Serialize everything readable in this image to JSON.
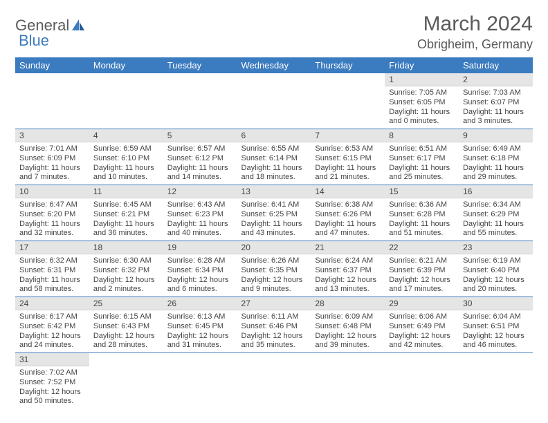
{
  "logo": {
    "part1": "General",
    "part2": "Blue"
  },
  "title": "March 2024",
  "location": "Obrigheim, Germany",
  "colors": {
    "header_bg": "#3b7bbf",
    "header_text": "#ffffff",
    "daynum_bg": "#e5e5e5",
    "row_border": "#3b7bbf",
    "page_bg": "#ffffff",
    "text": "#444444",
    "title_text": "#5a5a5a"
  },
  "weekdays": [
    "Sunday",
    "Monday",
    "Tuesday",
    "Wednesday",
    "Thursday",
    "Friday",
    "Saturday"
  ],
  "weeks": [
    [
      null,
      null,
      null,
      null,
      null,
      {
        "n": "1",
        "sr": "7:05 AM",
        "ss": "6:05 PM",
        "dl": "11 hours and 0 minutes."
      },
      {
        "n": "2",
        "sr": "7:03 AM",
        "ss": "6:07 PM",
        "dl": "11 hours and 3 minutes."
      }
    ],
    [
      {
        "n": "3",
        "sr": "7:01 AM",
        "ss": "6:09 PM",
        "dl": "11 hours and 7 minutes."
      },
      {
        "n": "4",
        "sr": "6:59 AM",
        "ss": "6:10 PM",
        "dl": "11 hours and 10 minutes."
      },
      {
        "n": "5",
        "sr": "6:57 AM",
        "ss": "6:12 PM",
        "dl": "11 hours and 14 minutes."
      },
      {
        "n": "6",
        "sr": "6:55 AM",
        "ss": "6:14 PM",
        "dl": "11 hours and 18 minutes."
      },
      {
        "n": "7",
        "sr": "6:53 AM",
        "ss": "6:15 PM",
        "dl": "11 hours and 21 minutes."
      },
      {
        "n": "8",
        "sr": "6:51 AM",
        "ss": "6:17 PM",
        "dl": "11 hours and 25 minutes."
      },
      {
        "n": "9",
        "sr": "6:49 AM",
        "ss": "6:18 PM",
        "dl": "11 hours and 29 minutes."
      }
    ],
    [
      {
        "n": "10",
        "sr": "6:47 AM",
        "ss": "6:20 PM",
        "dl": "11 hours and 32 minutes."
      },
      {
        "n": "11",
        "sr": "6:45 AM",
        "ss": "6:21 PM",
        "dl": "11 hours and 36 minutes."
      },
      {
        "n": "12",
        "sr": "6:43 AM",
        "ss": "6:23 PM",
        "dl": "11 hours and 40 minutes."
      },
      {
        "n": "13",
        "sr": "6:41 AM",
        "ss": "6:25 PM",
        "dl": "11 hours and 43 minutes."
      },
      {
        "n": "14",
        "sr": "6:38 AM",
        "ss": "6:26 PM",
        "dl": "11 hours and 47 minutes."
      },
      {
        "n": "15",
        "sr": "6:36 AM",
        "ss": "6:28 PM",
        "dl": "11 hours and 51 minutes."
      },
      {
        "n": "16",
        "sr": "6:34 AM",
        "ss": "6:29 PM",
        "dl": "11 hours and 55 minutes."
      }
    ],
    [
      {
        "n": "17",
        "sr": "6:32 AM",
        "ss": "6:31 PM",
        "dl": "11 hours and 58 minutes."
      },
      {
        "n": "18",
        "sr": "6:30 AM",
        "ss": "6:32 PM",
        "dl": "12 hours and 2 minutes."
      },
      {
        "n": "19",
        "sr": "6:28 AM",
        "ss": "6:34 PM",
        "dl": "12 hours and 6 minutes."
      },
      {
        "n": "20",
        "sr": "6:26 AM",
        "ss": "6:35 PM",
        "dl": "12 hours and 9 minutes."
      },
      {
        "n": "21",
        "sr": "6:24 AM",
        "ss": "6:37 PM",
        "dl": "12 hours and 13 minutes."
      },
      {
        "n": "22",
        "sr": "6:21 AM",
        "ss": "6:39 PM",
        "dl": "12 hours and 17 minutes."
      },
      {
        "n": "23",
        "sr": "6:19 AM",
        "ss": "6:40 PM",
        "dl": "12 hours and 20 minutes."
      }
    ],
    [
      {
        "n": "24",
        "sr": "6:17 AM",
        "ss": "6:42 PM",
        "dl": "12 hours and 24 minutes."
      },
      {
        "n": "25",
        "sr": "6:15 AM",
        "ss": "6:43 PM",
        "dl": "12 hours and 28 minutes."
      },
      {
        "n": "26",
        "sr": "6:13 AM",
        "ss": "6:45 PM",
        "dl": "12 hours and 31 minutes."
      },
      {
        "n": "27",
        "sr": "6:11 AM",
        "ss": "6:46 PM",
        "dl": "12 hours and 35 minutes."
      },
      {
        "n": "28",
        "sr": "6:09 AM",
        "ss": "6:48 PM",
        "dl": "12 hours and 39 minutes."
      },
      {
        "n": "29",
        "sr": "6:06 AM",
        "ss": "6:49 PM",
        "dl": "12 hours and 42 minutes."
      },
      {
        "n": "30",
        "sr": "6:04 AM",
        "ss": "6:51 PM",
        "dl": "12 hours and 46 minutes."
      }
    ],
    [
      {
        "n": "31",
        "sr": "7:02 AM",
        "ss": "7:52 PM",
        "dl": "12 hours and 50 minutes."
      },
      null,
      null,
      null,
      null,
      null,
      null
    ]
  ],
  "labels": {
    "sunrise": "Sunrise: ",
    "sunset": "Sunset: ",
    "daylight": "Daylight: "
  }
}
